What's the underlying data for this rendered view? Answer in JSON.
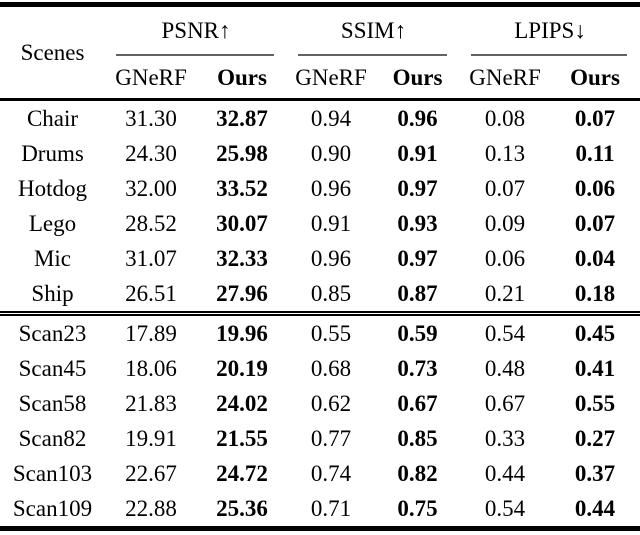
{
  "colors": {
    "ink": "#000000",
    "paper": "#ffffff",
    "cmidrule": "#636363"
  },
  "table": {
    "scenes_header": "Scenes",
    "groups": [
      {
        "label": "PSNR↑"
      },
      {
        "label": "SSIM↑"
      },
      {
        "label": "LPIPS↓"
      }
    ],
    "sub_headers": {
      "gnerf": "GNeRF",
      "ours": "Ours"
    },
    "sections": [
      {
        "rows": [
          {
            "scene": "Chair",
            "psnr_gnerf": "31.30",
            "psnr_ours": "32.87",
            "ssim_gnerf": "0.94",
            "ssim_ours": "0.96",
            "lpips_gnerf": "0.08",
            "lpips_ours": "0.07"
          },
          {
            "scene": "Drums",
            "psnr_gnerf": "24.30",
            "psnr_ours": "25.98",
            "ssim_gnerf": "0.90",
            "ssim_ours": "0.91",
            "lpips_gnerf": "0.13",
            "lpips_ours": "0.11"
          },
          {
            "scene": "Hotdog",
            "psnr_gnerf": "32.00",
            "psnr_ours": "33.52",
            "ssim_gnerf": "0.96",
            "ssim_ours": "0.97",
            "lpips_gnerf": "0.07",
            "lpips_ours": "0.06"
          },
          {
            "scene": "Lego",
            "psnr_gnerf": "28.52",
            "psnr_ours": "30.07",
            "ssim_gnerf": "0.91",
            "ssim_ours": "0.93",
            "lpips_gnerf": "0.09",
            "lpips_ours": "0.07"
          },
          {
            "scene": "Mic",
            "psnr_gnerf": "31.07",
            "psnr_ours": "32.33",
            "ssim_gnerf": "0.96",
            "ssim_ours": "0.97",
            "lpips_gnerf": "0.06",
            "lpips_ours": "0.04"
          },
          {
            "scene": "Ship",
            "psnr_gnerf": "26.51",
            "psnr_ours": "27.96",
            "ssim_gnerf": "0.85",
            "ssim_ours": "0.87",
            "lpips_gnerf": "0.21",
            "lpips_ours": "0.18"
          }
        ]
      },
      {
        "rows": [
          {
            "scene": "Scan23",
            "psnr_gnerf": "17.89",
            "psnr_ours": "19.96",
            "ssim_gnerf": "0.55",
            "ssim_ours": "0.59",
            "lpips_gnerf": "0.54",
            "lpips_ours": "0.45"
          },
          {
            "scene": "Scan45",
            "psnr_gnerf": "18.06",
            "psnr_ours": "20.19",
            "ssim_gnerf": "0.68",
            "ssim_ours": "0.73",
            "lpips_gnerf": "0.48",
            "lpips_ours": "0.41"
          },
          {
            "scene": "Scan58",
            "psnr_gnerf": "21.83",
            "psnr_ours": "24.02",
            "ssim_gnerf": "0.62",
            "ssim_ours": "0.67",
            "lpips_gnerf": "0.67",
            "lpips_ours": "0.55"
          },
          {
            "scene": "Scan82",
            "psnr_gnerf": "19.91",
            "psnr_ours": "21.55",
            "ssim_gnerf": "0.77",
            "ssim_ours": "0.85",
            "lpips_gnerf": "0.33",
            "lpips_ours": "0.27"
          },
          {
            "scene": "Scan103",
            "psnr_gnerf": "22.67",
            "psnr_ours": "24.72",
            "ssim_gnerf": "0.74",
            "ssim_ours": "0.82",
            "lpips_gnerf": "0.44",
            "lpips_ours": "0.37"
          },
          {
            "scene": "Scan109",
            "psnr_gnerf": "22.88",
            "psnr_ours": "25.36",
            "ssim_gnerf": "0.71",
            "ssim_ours": "0.75",
            "lpips_gnerf": "0.54",
            "lpips_ours": "0.44"
          }
        ]
      }
    ]
  }
}
